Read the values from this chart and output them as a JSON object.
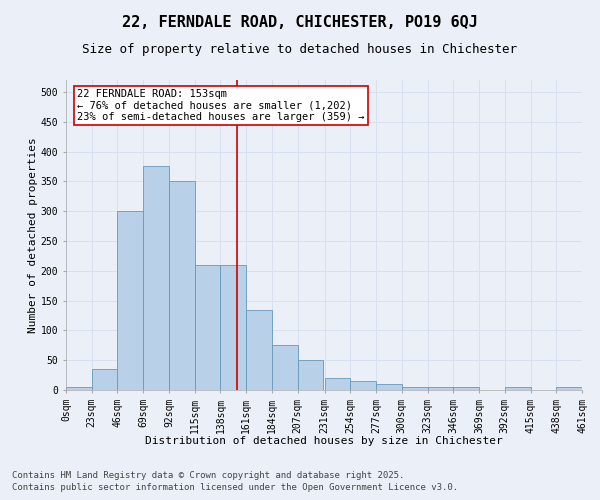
{
  "title": "22, FERNDALE ROAD, CHICHESTER, PO19 6QJ",
  "subtitle": "Size of property relative to detached houses in Chichester",
  "xlabel": "Distribution of detached houses by size in Chichester",
  "ylabel": "Number of detached properties",
  "bin_labels": [
    "0sqm",
    "23sqm",
    "46sqm",
    "69sqm",
    "92sqm",
    "115sqm",
    "138sqm",
    "161sqm",
    "184sqm",
    "207sqm",
    "231sqm",
    "254sqm",
    "277sqm",
    "300sqm",
    "323sqm",
    "346sqm",
    "369sqm",
    "392sqm",
    "415sqm",
    "438sqm",
    "461sqm"
  ],
  "bin_edges": [
    0,
    23,
    46,
    69,
    92,
    115,
    138,
    161,
    184,
    207,
    231,
    254,
    277,
    300,
    323,
    346,
    369,
    392,
    415,
    438,
    461
  ],
  "bar_heights": [
    5,
    35,
    300,
    375,
    350,
    210,
    210,
    135,
    75,
    50,
    20,
    15,
    10,
    5,
    5,
    5,
    0,
    5,
    0,
    5
  ],
  "bar_color": "#b8d0e8",
  "bar_edge_color": "#6699bb",
  "vline_x": 153,
  "vline_color": "#cc0000",
  "annotation_text": "22 FERNDALE ROAD: 153sqm\n← 76% of detached houses are smaller (1,202)\n23% of semi-detached houses are larger (359) →",
  "annotation_box_color": "#ffffff",
  "annotation_box_edge": "#cc0000",
  "ylim": [
    0,
    520
  ],
  "yticks": [
    0,
    50,
    100,
    150,
    200,
    250,
    300,
    350,
    400,
    450,
    500
  ],
  "grid_color": "#d8e0f0",
  "background_color": "#eaeff8",
  "footer_line1": "Contains HM Land Registry data © Crown copyright and database right 2025.",
  "footer_line2": "Contains public sector information licensed under the Open Government Licence v3.0.",
  "title_fontsize": 11,
  "subtitle_fontsize": 9,
  "label_fontsize": 8,
  "tick_fontsize": 7,
  "annotation_fontsize": 7.5,
  "footer_fontsize": 6.5
}
